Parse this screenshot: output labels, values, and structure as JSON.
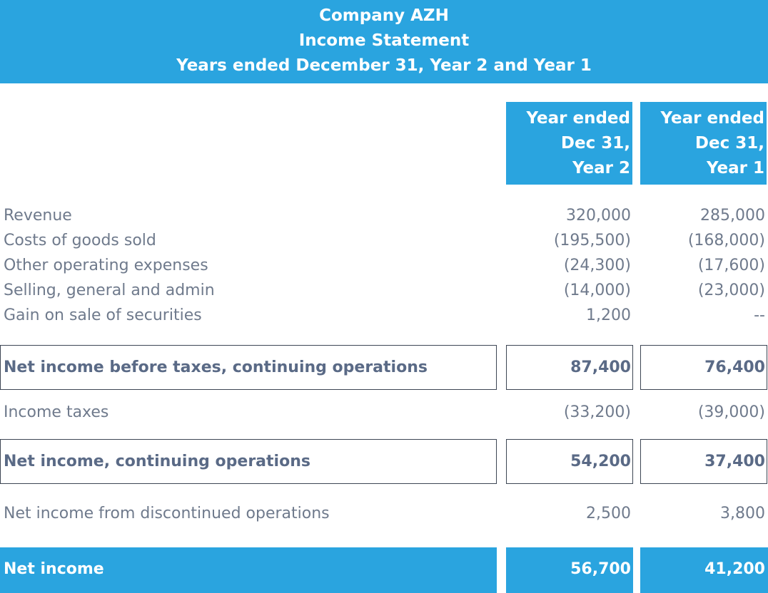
{
  "header": {
    "company": "Company AZH",
    "statement": "Income Statement",
    "period": "Years ended December 31, Year 2 and Year 1"
  },
  "columns": [
    {
      "line1": "Year ended",
      "line2": "Dec 31,",
      "line3": "Year 2"
    },
    {
      "line1": "Year ended",
      "line2": "Dec 31,",
      "line3": "Year 1"
    }
  ],
  "items": [
    {
      "label": "Revenue",
      "y2": "320,000",
      "y1": "285,000"
    },
    {
      "label": "Costs of goods sold",
      "y2": "(195,500)",
      "y1": "(168,000)"
    },
    {
      "label": "Other operating expenses",
      "y2": "(24,300)",
      "y1": "(17,600)"
    },
    {
      "label": "Selling, general and admin",
      "y2": "(14,000)",
      "y1": "(23,000)"
    },
    {
      "label": "Gain on sale of securities",
      "y2": "1,200",
      "y1": "--"
    }
  ],
  "pretax": {
    "label": "Net income before taxes, continuing operations",
    "y2": "87,400",
    "y1": "76,400"
  },
  "taxes": {
    "label": "Income taxes",
    "y2": "(33,200)",
    "y1": "(39,000)"
  },
  "continuing": {
    "label": "Net income, continuing operations",
    "y2": "54,200",
    "y1": "37,400"
  },
  "discontinued": {
    "label": "Net income from discontinued operations",
    "y2": "2,500",
    "y1": "3,800"
  },
  "net": {
    "label": "Net income",
    "y2": "56,700",
    "y1": "41,200"
  },
  "colors": {
    "accent": "#2aa4df",
    "text": "#6f7a8c",
    "bold_text": "#5a6a86",
    "border": "#3d4654"
  }
}
